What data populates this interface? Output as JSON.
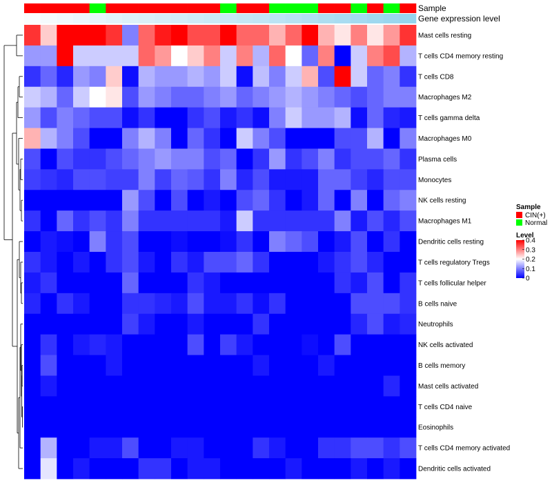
{
  "chart_data": {
    "type": "heatmap",
    "title": "",
    "annotation_tracks": [
      {
        "name": "Sample",
        "label": "Sample"
      },
      {
        "name": "Gene expression level",
        "label": "Gene expression level"
      }
    ],
    "sample_groups": [
      "C",
      "C",
      "C",
      "C",
      "N",
      "C",
      "C",
      "C",
      "C",
      "C",
      "C",
      "C",
      "N",
      "C",
      "C",
      "N",
      "N",
      "N",
      "C",
      "C",
      "N",
      "C",
      "N",
      "C"
    ],
    "expression_level": [
      0.04,
      0.08,
      0.12,
      0.16,
      0.2,
      0.24,
      0.28,
      0.31,
      0.34,
      0.37,
      0.4,
      0.43,
      0.46,
      0.49,
      0.52,
      0.56,
      0.6,
      0.64,
      0.68,
      0.72,
      0.76,
      0.8,
      0.84,
      0.88
    ],
    "rows": [
      "Mast cells resting",
      "T cells CD4 memory resting",
      "T cells CD8",
      "Macrophages M2",
      "T cells gamma delta",
      "Macrophages M0",
      "Plasma cells",
      "Monocytes",
      "NK cells resting",
      "Macrophages M1",
      "Dendritic cells resting",
      "T cells regulatory  Tregs",
      "T cells follicular helper",
      "B cells naive",
      "Neutrophils",
      "NK cells activated",
      "B cells memory",
      "Mast cells activated",
      "T cells CD4 naive",
      "Eosinophils",
      "T cells CD4 memory activated",
      "Dendritic cells activated"
    ],
    "values": [
      [
        0.36,
        0.24,
        0.4,
        0.4,
        0.4,
        0.36,
        0.1,
        0.32,
        0.38,
        0.4,
        0.34,
        0.34,
        0.4,
        0.32,
        0.32,
        0.26,
        0.32,
        0.4,
        0.26,
        0.22,
        0.3,
        0.22,
        0.28,
        0.36
      ],
      [
        0.12,
        0.12,
        0.4,
        0.16,
        0.16,
        0.16,
        0.16,
        0.32,
        0.28,
        0.2,
        0.24,
        0.3,
        0.16,
        0.3,
        0.14,
        0.32,
        0.2,
        0.08,
        0.3,
        0.0,
        0.16,
        0.3,
        0.34,
        0.14
      ],
      [
        0.04,
        0.08,
        0.03,
        0.12,
        0.1,
        0.24,
        0.01,
        0.14,
        0.12,
        0.12,
        0.14,
        0.12,
        0.16,
        0.01,
        0.15,
        0.1,
        0.16,
        0.26,
        0.06,
        0.4,
        0.16,
        0.08,
        0.1,
        0.04
      ],
      [
        0.16,
        0.14,
        0.08,
        0.16,
        0.2,
        0.22,
        0.06,
        0.12,
        0.1,
        0.08,
        0.08,
        0.1,
        0.12,
        0.08,
        0.1,
        0.12,
        0.14,
        0.12,
        0.1,
        0.08,
        0.06,
        0.08,
        0.1,
        0.1
      ],
      [
        0.12,
        0.06,
        0.1,
        0.08,
        0.06,
        0.06,
        0.01,
        0.04,
        0.0,
        0.0,
        0.04,
        0.06,
        0.02,
        0.04,
        0.01,
        0.1,
        0.16,
        0.12,
        0.12,
        0.14,
        0.01,
        0.08,
        0.03,
        0.02
      ],
      [
        0.26,
        0.14,
        0.1,
        0.06,
        0.0,
        0.0,
        0.1,
        0.14,
        0.1,
        0.0,
        0.08,
        0.04,
        0.0,
        0.16,
        0.1,
        0.06,
        0.0,
        0.0,
        0.0,
        0.06,
        0.06,
        0.14,
        0.0,
        0.1
      ],
      [
        0.06,
        0.0,
        0.06,
        0.04,
        0.04,
        0.06,
        0.08,
        0.1,
        0.12,
        0.1,
        0.1,
        0.06,
        0.08,
        0.0,
        0.04,
        0.12,
        0.04,
        0.06,
        0.1,
        0.04,
        0.06,
        0.06,
        0.08,
        0.04
      ],
      [
        0.05,
        0.04,
        0.03,
        0.06,
        0.06,
        0.05,
        0.05,
        0.1,
        0.05,
        0.08,
        0.07,
        0.04,
        0.1,
        0.03,
        0.06,
        0.02,
        0.02,
        0.02,
        0.08,
        0.08,
        0.05,
        0.03,
        0.06,
        0.06
      ],
      [
        0.0,
        0.0,
        0.0,
        0.0,
        0.0,
        0.0,
        0.12,
        0.06,
        0.0,
        0.06,
        0.0,
        0.02,
        0.0,
        0.06,
        0.08,
        0.04,
        0.0,
        0.02,
        0.08,
        0.0,
        0.1,
        0.0,
        0.08,
        0.1
      ],
      [
        0.04,
        0.0,
        0.08,
        0.04,
        0.06,
        0.04,
        0.1,
        0.04,
        0.04,
        0.04,
        0.04,
        0.04,
        0.02,
        0.16,
        0.04,
        0.04,
        0.04,
        0.04,
        0.04,
        0.1,
        0.02,
        0.06,
        0.03,
        0.06
      ],
      [
        0.0,
        0.02,
        0.01,
        0.0,
        0.1,
        0.04,
        0.06,
        0.0,
        0.0,
        0.01,
        0.0,
        0.0,
        0.01,
        0.04,
        0.0,
        0.1,
        0.08,
        0.06,
        0.0,
        0.02,
        0.06,
        0.0,
        0.04,
        0.0
      ],
      [
        0.04,
        0.02,
        0.0,
        0.02,
        0.0,
        0.04,
        0.06,
        0.02,
        0.0,
        0.04,
        0.02,
        0.06,
        0.06,
        0.08,
        0.04,
        0.0,
        0.0,
        0.0,
        0.02,
        0.04,
        0.06,
        0.03,
        0.0,
        0.0
      ],
      [
        0.02,
        0.04,
        0.0,
        0.0,
        0.0,
        0.0,
        0.08,
        0.0,
        0.0,
        0.0,
        0.04,
        0.02,
        0.0,
        0.0,
        0.0,
        0.0,
        0.0,
        0.0,
        0.0,
        0.04,
        0.02,
        0.06,
        0.0,
        0.04
      ],
      [
        0.03,
        0.0,
        0.04,
        0.02,
        0.0,
        0.0,
        0.04,
        0.04,
        0.03,
        0.02,
        0.06,
        0.02,
        0.02,
        0.04,
        0.01,
        0.04,
        0.0,
        0.0,
        0.0,
        0.0,
        0.06,
        0.06,
        0.06,
        0.04
      ],
      [
        0.0,
        0.0,
        0.0,
        0.0,
        0.0,
        0.0,
        0.05,
        0.02,
        0.0,
        0.0,
        0.02,
        0.0,
        0.0,
        0.0,
        0.04,
        0.0,
        0.0,
        0.0,
        0.0,
        0.0,
        0.03,
        0.06,
        0.02,
        0.03
      ],
      [
        0.0,
        0.04,
        0.0,
        0.02,
        0.03,
        0.02,
        0.0,
        0.0,
        0.0,
        0.0,
        0.06,
        0.0,
        0.05,
        0.02,
        0.0,
        0.0,
        0.0,
        0.01,
        0.0,
        0.06,
        0.0,
        0.0,
        0.0,
        0.0
      ],
      [
        0.0,
        0.06,
        0.0,
        0.0,
        0.0,
        0.02,
        0.0,
        0.0,
        0.0,
        0.0,
        0.0,
        0.0,
        0.0,
        0.0,
        0.02,
        0.0,
        0.0,
        0.0,
        0.02,
        0.0,
        0.0,
        0.0,
        0.0,
        0.0
      ],
      [
        0.0,
        0.02,
        0.0,
        0.0,
        0.0,
        0.0,
        0.0,
        0.0,
        0.0,
        0.0,
        0.0,
        0.0,
        0.0,
        0.0,
        0.0,
        0.0,
        0.0,
        0.0,
        0.0,
        0.0,
        0.0,
        0.0,
        0.03,
        0.0
      ],
      [
        0.0,
        0.0,
        0.0,
        0.0,
        0.0,
        0.0,
        0.0,
        0.0,
        0.0,
        0.0,
        0.0,
        0.0,
        0.0,
        0.0,
        0.0,
        0.0,
        0.0,
        0.0,
        0.0,
        0.0,
        0.0,
        0.0,
        0.0,
        0.0
      ],
      [
        0.0,
        0.0,
        0.0,
        0.0,
        0.0,
        0.0,
        0.0,
        0.0,
        0.0,
        0.0,
        0.0,
        0.0,
        0.0,
        0.0,
        0.0,
        0.0,
        0.0,
        0.0,
        0.0,
        0.0,
        0.0,
        0.0,
        0.0,
        0.0
      ],
      [
        0.0,
        0.14,
        0.0,
        0.0,
        0.02,
        0.02,
        0.06,
        0.0,
        0.0,
        0.02,
        0.02,
        0.0,
        0.0,
        0.0,
        0.04,
        0.02,
        0.0,
        0.0,
        0.04,
        0.04,
        0.06,
        0.06,
        0.04,
        0.06
      ],
      [
        0.0,
        0.18,
        0.0,
        0.02,
        0.0,
        0.0,
        0.0,
        0.04,
        0.04,
        0.0,
        0.02,
        0.02,
        0.0,
        0.0,
        0.0,
        0.0,
        0.02,
        0.0,
        0.0,
        0.0,
        0.02,
        0.0,
        0.02,
        0.0
      ]
    ],
    "color_scale": {
      "min": 0,
      "max": 0.4,
      "low": "#0000FF",
      "mid": "#FFFFFF",
      "high": "#FF0000",
      "mid_value": 0.2
    },
    "expression_colors": {
      "low": "#FFFFFF",
      "high": "#87CEEB"
    },
    "legend": {
      "sample_title": "Sample",
      "sample_entries": [
        {
          "key": "C",
          "label": "CIN(+)",
          "color": "#FF0000"
        },
        {
          "key": "N",
          "label": "Normal",
          "color": "#00FF00"
        }
      ],
      "level_title": "Level",
      "level_ticks": [
        {
          "value": 0.4,
          "label": "0.4"
        },
        {
          "value": 0.3,
          "label": "0.3"
        },
        {
          "value": 0.2,
          "label": "0.2"
        },
        {
          "value": 0.1,
          "label": "0.1"
        },
        {
          "value": 0,
          "label": "0"
        }
      ]
    },
    "dendrogram": {
      "order": [
        0,
        1,
        2,
        3,
        4,
        5,
        6,
        7,
        8,
        9,
        10,
        11,
        12,
        13,
        14,
        15,
        16,
        17,
        18,
        19,
        20,
        21
      ]
    }
  }
}
